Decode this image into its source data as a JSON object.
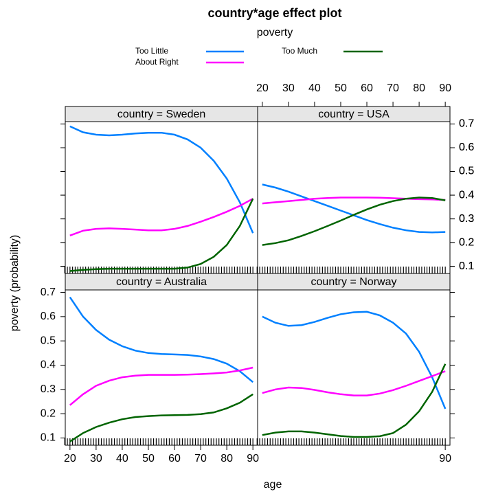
{
  "figure": {
    "title": "country*age effect plot",
    "legend_title": "poverty",
    "x_label": "age",
    "y_label": "poverty (probability)",
    "rug": [
      18,
      19,
      20,
      21,
      22,
      23,
      24,
      25,
      26,
      27,
      28,
      29,
      30,
      31,
      32,
      33,
      34,
      35,
      36,
      37,
      38,
      39,
      40,
      41,
      42,
      43,
      44,
      45,
      46,
      47,
      48,
      49,
      50,
      51,
      52,
      53,
      54,
      55,
      56,
      57,
      58,
      59,
      60,
      61,
      62,
      63,
      64,
      65,
      66,
      67,
      68,
      69,
      70,
      71,
      72,
      73,
      74,
      75,
      76,
      77,
      78,
      79,
      80,
      81,
      82,
      83,
      84,
      85,
      86,
      87,
      88,
      89,
      90
    ]
  },
  "chart_data": [
    {
      "type": "line",
      "strip": "country = Sweden",
      "x_axis_side": "bottom",
      "y_axis_side": "right",
      "x": [
        20,
        25,
        30,
        35,
        40,
        45,
        50,
        55,
        60,
        65,
        70,
        75,
        80,
        85,
        90
      ],
      "xlim": [
        18.2,
        91.8
      ],
      "xticks": [
        20,
        30,
        40,
        50,
        60,
        70,
        80,
        90
      ],
      "ylim": [
        0.07,
        0.71
      ],
      "yticks": [
        0.1,
        0.2,
        0.3,
        0.4,
        0.5,
        0.6,
        0.7
      ],
      "series": [
        {
          "name": "Too Little",
          "color": "#0080ff",
          "values": [
            0.69,
            0.665,
            0.655,
            0.652,
            0.655,
            0.66,
            0.663,
            0.663,
            0.655,
            0.635,
            0.6,
            0.545,
            0.47,
            0.37,
            0.24
          ]
        },
        {
          "name": "About Right",
          "color": "#ff00ff",
          "values": [
            0.23,
            0.25,
            0.258,
            0.26,
            0.258,
            0.255,
            0.252,
            0.252,
            0.258,
            0.27,
            0.288,
            0.308,
            0.33,
            0.355,
            0.385
          ]
        },
        {
          "name": "Too Much",
          "color": "#006400",
          "values": [
            0.08,
            0.085,
            0.088,
            0.09,
            0.09,
            0.09,
            0.09,
            0.09,
            0.09,
            0.095,
            0.11,
            0.14,
            0.19,
            0.27,
            0.385
          ]
        }
      ]
    },
    {
      "type": "line",
      "strip": "country = USA",
      "x_axis_side": "top",
      "y_axis_side": "right",
      "x": [
        20,
        25,
        30,
        35,
        40,
        45,
        50,
        55,
        60,
        65,
        70,
        75,
        80,
        85,
        90
      ],
      "xlim": [
        18.2,
        91.8
      ],
      "xticks": [
        20,
        30,
        40,
        50,
        60,
        70,
        80,
        90
      ],
      "ylim": [
        0.07,
        0.71
      ],
      "yticks": [
        0.1,
        0.2,
        0.3,
        0.4,
        0.5,
        0.6,
        0.7
      ],
      "series": [
        {
          "name": "Too Little",
          "color": "#0080ff",
          "values": [
            0.445,
            0.432,
            0.415,
            0.395,
            0.375,
            0.355,
            0.335,
            0.315,
            0.295,
            0.278,
            0.263,
            0.252,
            0.245,
            0.243,
            0.245
          ]
        },
        {
          "name": "About Right",
          "color": "#ff00ff",
          "values": [
            0.365,
            0.37,
            0.375,
            0.38,
            0.385,
            0.388,
            0.39,
            0.39,
            0.39,
            0.389,
            0.387,
            0.385,
            0.383,
            0.382,
            0.38
          ]
        },
        {
          "name": "Too Much",
          "color": "#006400",
          "values": [
            0.19,
            0.198,
            0.21,
            0.228,
            0.248,
            0.27,
            0.293,
            0.317,
            0.34,
            0.36,
            0.375,
            0.385,
            0.39,
            0.388,
            0.378
          ]
        }
      ]
    },
    {
      "type": "line",
      "strip": "country = Australia",
      "x_axis_side": "bottom",
      "y_axis_side": "left",
      "x": [
        20,
        25,
        30,
        35,
        40,
        45,
        50,
        55,
        60,
        65,
        70,
        75,
        80,
        85,
        90
      ],
      "xlim": [
        18.2,
        91.8
      ],
      "xticks": [
        20,
        30,
        40,
        50,
        60,
        70,
        80,
        90
      ],
      "ylim": [
        0.07,
        0.71
      ],
      "yticks": [
        0.1,
        0.2,
        0.3,
        0.4,
        0.5,
        0.6,
        0.7
      ],
      "series": [
        {
          "name": "Too Little",
          "color": "#0080ff",
          "values": [
            0.68,
            0.6,
            0.545,
            0.505,
            0.478,
            0.46,
            0.45,
            0.446,
            0.444,
            0.442,
            0.436,
            0.425,
            0.406,
            0.375,
            0.33
          ]
        },
        {
          "name": "About Right",
          "color": "#ff00ff",
          "values": [
            0.235,
            0.28,
            0.315,
            0.336,
            0.35,
            0.357,
            0.36,
            0.36,
            0.36,
            0.361,
            0.363,
            0.366,
            0.37,
            0.378,
            0.39
          ]
        },
        {
          "name": "Too Much",
          "color": "#006400",
          "values": [
            0.085,
            0.12,
            0.145,
            0.163,
            0.177,
            0.186,
            0.19,
            0.193,
            0.194,
            0.195,
            0.198,
            0.205,
            0.222,
            0.245,
            0.28
          ]
        }
      ]
    },
    {
      "type": "line",
      "strip": "country = Norway",
      "x_axis_side": "bottom",
      "y_axis_side": "left",
      "x": [
        20,
        25,
        30,
        35,
        40,
        45,
        50,
        55,
        60,
        65,
        70,
        75,
        80,
        85,
        90
      ],
      "xlim": [
        18.2,
        91.8
      ],
      "xticks": [
        90
      ],
      "ylim": [
        0.07,
        0.71
      ],
      "yticks": [],
      "series": [
        {
          "name": "Too Little",
          "color": "#0080ff",
          "values": [
            0.6,
            0.575,
            0.562,
            0.565,
            0.578,
            0.595,
            0.61,
            0.618,
            0.62,
            0.605,
            0.575,
            0.53,
            0.455,
            0.35,
            0.22
          ]
        },
        {
          "name": "About Right",
          "color": "#ff00ff",
          "values": [
            0.285,
            0.3,
            0.308,
            0.306,
            0.298,
            0.288,
            0.28,
            0.275,
            0.275,
            0.283,
            0.297,
            0.315,
            0.335,
            0.355,
            0.375
          ]
        },
        {
          "name": "Too Much",
          "color": "#006400",
          "values": [
            0.112,
            0.122,
            0.127,
            0.127,
            0.122,
            0.115,
            0.108,
            0.104,
            0.104,
            0.107,
            0.12,
            0.155,
            0.21,
            0.29,
            0.405
          ]
        }
      ]
    }
  ]
}
